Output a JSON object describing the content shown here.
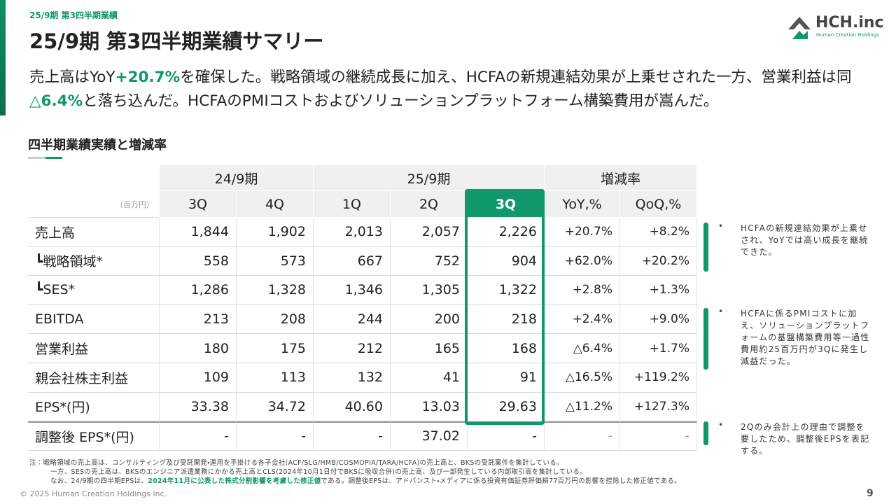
{
  "header": {
    "breadcrumb": "25/9期 第3四半期業績",
    "title": "25/9期 第3四半期業績サマリー",
    "logo": "HCH.inc",
    "logo_sub": "Human Creation Holdings"
  },
  "summary": {
    "segments": [
      {
        "text": "売上高はYoY",
        "highlight": false
      },
      {
        "text": "+20.7%",
        "highlight": true
      },
      {
        "text": "を確保した。戦略領域の継続成長に加え、HCFAの新規連結効果が上乗せされた一方、営業利益は同",
        "highlight": false
      },
      {
        "text": "△6.4%",
        "highlight": true
      },
      {
        "text": "と落ち込んだ。HCFAのPMIコストおよびソリューションプラットフォーム構築費用が嵩んだ。",
        "highlight": false
      }
    ]
  },
  "section_title": "四半期業績実績と増減率",
  "table": {
    "unit": "（百万円）",
    "groups": [
      "24/9期",
      "25/9期",
      "増減率"
    ],
    "columns": [
      "3Q",
      "4Q",
      "1Q",
      "2Q",
      "3Q",
      "YoY,%",
      "QoQ,%"
    ],
    "rows": [
      [
        "売上高",
        "1,844",
        "1,902",
        "2,013",
        "2,057",
        "2,226",
        "+20.7%",
        "+8.2%"
      ],
      [
        "┗戦略領域*",
        "558",
        "573",
        "667",
        "752",
        "904",
        "+62.0%",
        "+20.2%"
      ],
      [
        "┗SES*",
        "1,286",
        "1,328",
        "1,346",
        "1,305",
        "1,322",
        "+2.8%",
        "+1.3%"
      ],
      [
        "EBITDA",
        "213",
        "208",
        "244",
        "200",
        "218",
        "+2.4%",
        "+9.0%"
      ],
      [
        "営業利益",
        "180",
        "175",
        "212",
        "165",
        "168",
        "△6.4%",
        "+1.7%"
      ],
      [
        "親会社株主利益",
        "109",
        "113",
        "132",
        "41",
        "91",
        "△16.5%",
        "+119.2%"
      ],
      [
        "EPS*(円)",
        "33.38",
        "34.72",
        "40.60",
        "13.03",
        "29.63",
        "△11.2%",
        "+127.3%"
      ],
      [
        "調整後 EPS*(円)",
        "-",
        "-",
        "-",
        "37.02",
        "-",
        "-",
        "-"
      ]
    ]
  },
  "comments": [
    "HCFAの新規連結効果が上乗せされ、YoYでは高い成長を継続できた。",
    "HCFAに係るPMIコストに加え、ソリューションプラットフォームの基盤構築費用等一過性費用約25百万円が3Qに発生し減益だった。",
    "2Qのみ会計上の理由で調整を要したため、調整後EPSを表記する。"
  ],
  "notes": [
    [
      {
        "text": "注：戦略領域の売上高は、コンサルティング及び受託開発・運用を手掛ける各子会社(ACF/SLG/HMB/COSMOPIA/TARA/HCFA)の売上高と、BKSの受託案件を集計している。",
        "highlight": false
      }
    ],
    [
      {
        "text": "一方、SESの売上高は、BKSのエンジニア派遣業務にかかる売上高とCLS(2024年10月1日付でBKSに吸収合併)の売上高、及び一部発生している内部取引高を集計している。",
        "highlight": false
      }
    ],
    [
      {
        "text": "なお、24/9期の四半期EPSは、",
        "highlight": false
      },
      {
        "text": "2024年11月に公表した株式分割影響を考慮した修正値",
        "highlight": true
      },
      {
        "text": "である。調整後EPSは、アドバンスト・メディアに係る投資有価証券評価損77百万円の影響を控除した修正値である。",
        "highlight": false
      }
    ]
  ],
  "footer": {
    "copyright": "© 2025 Human Creation Holdings inc.",
    "page": "9"
  }
}
